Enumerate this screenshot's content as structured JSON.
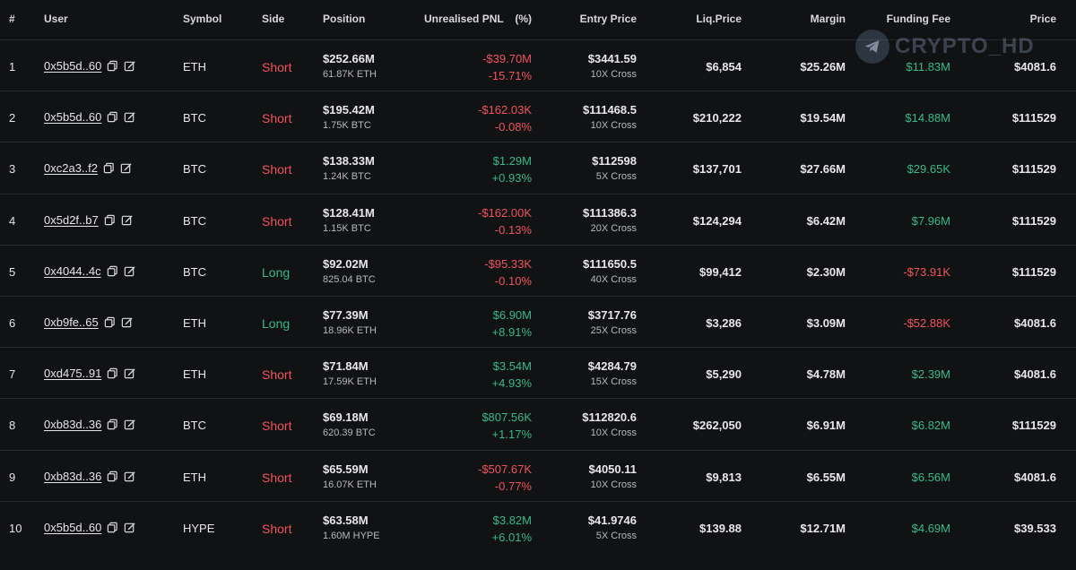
{
  "watermark": {
    "text": "CRYPTO_HD",
    "icon": "telegram-icon"
  },
  "header": {
    "idx": "#",
    "user": "User",
    "symbol": "Symbol",
    "side": "Side",
    "position": "Position",
    "pnl": "Unrealised PNL",
    "pct": "(%)",
    "entry": "Entry Price",
    "liq": "Liq.Price",
    "margin": "Margin",
    "funding": "Funding Fee",
    "price": "Price"
  },
  "colors": {
    "short": "#f0545c",
    "long": "#39b98a",
    "background": "#111214"
  },
  "rows": [
    {
      "idx": "1",
      "user": "0x5b5d..60",
      "symbol": "ETH",
      "side": "Short",
      "position": "$252.66M",
      "position_size": "61.87K ETH",
      "pnl": "-$39.70M",
      "pnl_pct": "-15.71%",
      "entry": "$3441.59",
      "leverage": "10X Cross",
      "liq": "$6,854",
      "margin": "$25.26M",
      "funding": "$11.83M",
      "price": "$4081.6"
    },
    {
      "idx": "2",
      "user": "0x5b5d..60",
      "symbol": "BTC",
      "side": "Short",
      "position": "$195.42M",
      "position_size": "1.75K BTC",
      "pnl": "-$162.03K",
      "pnl_pct": "-0.08%",
      "entry": "$111468.5",
      "leverage": "10X Cross",
      "liq": "$210,222",
      "margin": "$19.54M",
      "funding": "$14.88M",
      "price": "$111529"
    },
    {
      "idx": "3",
      "user": "0xc2a3..f2",
      "symbol": "BTC",
      "side": "Short",
      "position": "$138.33M",
      "position_size": "1.24K BTC",
      "pnl": "$1.29M",
      "pnl_pct": "+0.93%",
      "entry": "$112598",
      "leverage": "5X Cross",
      "liq": "$137,701",
      "margin": "$27.66M",
      "funding": "$29.65K",
      "price": "$111529"
    },
    {
      "idx": "4",
      "user": "0x5d2f..b7",
      "symbol": "BTC",
      "side": "Short",
      "position": "$128.41M",
      "position_size": "1.15K BTC",
      "pnl": "-$162.00K",
      "pnl_pct": "-0.13%",
      "entry": "$111386.3",
      "leverage": "20X Cross",
      "liq": "$124,294",
      "margin": "$6.42M",
      "funding": "$7.96M",
      "price": "$111529"
    },
    {
      "idx": "5",
      "user": "0x4044..4c",
      "symbol": "BTC",
      "side": "Long",
      "position": "$92.02M",
      "position_size": "825.04 BTC",
      "pnl": "-$95.33K",
      "pnl_pct": "-0.10%",
      "entry": "$111650.5",
      "leverage": "40X Cross",
      "liq": "$99,412",
      "margin": "$2.30M",
      "funding": "-$73.91K",
      "price": "$111529"
    },
    {
      "idx": "6",
      "user": "0xb9fe..65",
      "symbol": "ETH",
      "side": "Long",
      "position": "$77.39M",
      "position_size": "18.96K ETH",
      "pnl": "$6.90M",
      "pnl_pct": "+8.91%",
      "entry": "$3717.76",
      "leverage": "25X Cross",
      "liq": "$3,286",
      "margin": "$3.09M",
      "funding": "-$52.88K",
      "price": "$4081.6"
    },
    {
      "idx": "7",
      "user": "0xd475..91",
      "symbol": "ETH",
      "side": "Short",
      "position": "$71.84M",
      "position_size": "17.59K ETH",
      "pnl": "$3.54M",
      "pnl_pct": "+4.93%",
      "entry": "$4284.79",
      "leverage": "15X Cross",
      "liq": "$5,290",
      "margin": "$4.78M",
      "funding": "$2.39M",
      "price": "$4081.6"
    },
    {
      "idx": "8",
      "user": "0xb83d..36",
      "symbol": "BTC",
      "side": "Short",
      "position": "$69.18M",
      "position_size": "620.39 BTC",
      "pnl": "$807.56K",
      "pnl_pct": "+1.17%",
      "entry": "$112820.6",
      "leverage": "10X Cross",
      "liq": "$262,050",
      "margin": "$6.91M",
      "funding": "$6.82M",
      "price": "$111529"
    },
    {
      "idx": "9",
      "user": "0xb83d..36",
      "symbol": "ETH",
      "side": "Short",
      "position": "$65.59M",
      "position_size": "16.07K ETH",
      "pnl": "-$507.67K",
      "pnl_pct": "-0.77%",
      "entry": "$4050.11",
      "leverage": "10X Cross",
      "liq": "$9,813",
      "margin": "$6.55M",
      "funding": "$6.56M",
      "price": "$4081.6"
    },
    {
      "idx": "10",
      "user": "0x5b5d..60",
      "symbol": "HYPE",
      "side": "Short",
      "position": "$63.58M",
      "position_size": "1.60M HYPE",
      "pnl": "$3.82M",
      "pnl_pct": "+6.01%",
      "entry": "$41.9746",
      "leverage": "5X Cross",
      "liq": "$139.88",
      "margin": "$12.71M",
      "funding": "$4.69M",
      "price": "$39.533"
    }
  ]
}
